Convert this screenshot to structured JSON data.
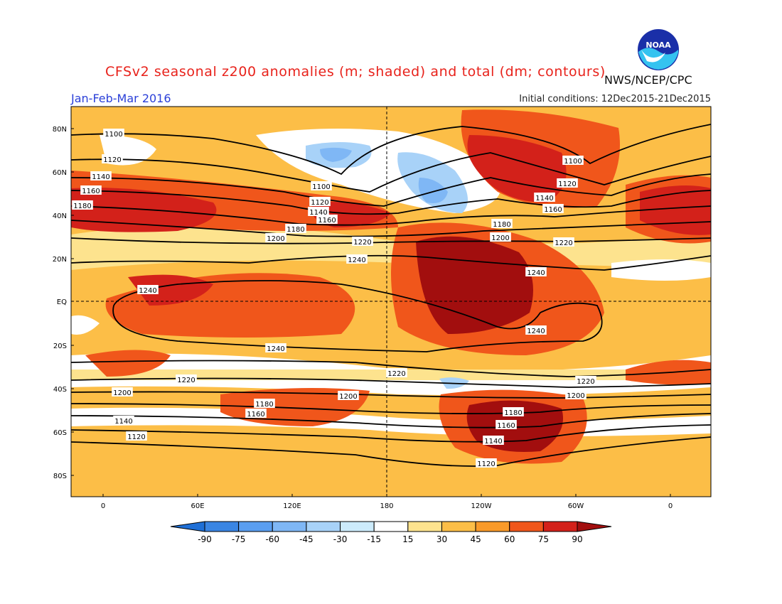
{
  "header": {
    "title": "CFSv2 seasonal z200 anomalies (m; shaded) and total (dm; contours)",
    "period": "Jan-Feb-Mar 2016",
    "initial_conditions": "Initial conditions: 12Dec2015-21Dec2015",
    "agency": "NWS/NCEP/CPC",
    "logo_text": "NOAA"
  },
  "map": {
    "lat_labels": [
      "80N",
      "60N",
      "40N",
      "20N",
      "EQ",
      "20S",
      "40S",
      "60S",
      "80S"
    ],
    "lon_labels": [
      "0",
      "60E",
      "120E",
      "180",
      "120W",
      "60W",
      "0"
    ],
    "contour_labels": [
      "1100",
      "1120",
      "1140",
      "1160",
      "1180",
      "1200",
      "1220",
      "1240"
    ]
  },
  "colorbar": {
    "levels": [
      "-90",
      "-75",
      "-60",
      "-45",
      "-30",
      "-15",
      "15",
      "30",
      "45",
      "60",
      "75",
      "90"
    ],
    "colors": [
      "#1f6fd6",
      "#3a85e3",
      "#5a9ef0",
      "#7fb7f5",
      "#a8d2f8",
      "#ccebfb",
      "#ffffff",
      "#fde38e",
      "#fcbe47",
      "#f99a29",
      "#f0561b",
      "#d3211a",
      "#a20e0e"
    ]
  },
  "colors": {
    "title": "#e8221b",
    "period": "#2a3fd8"
  }
}
